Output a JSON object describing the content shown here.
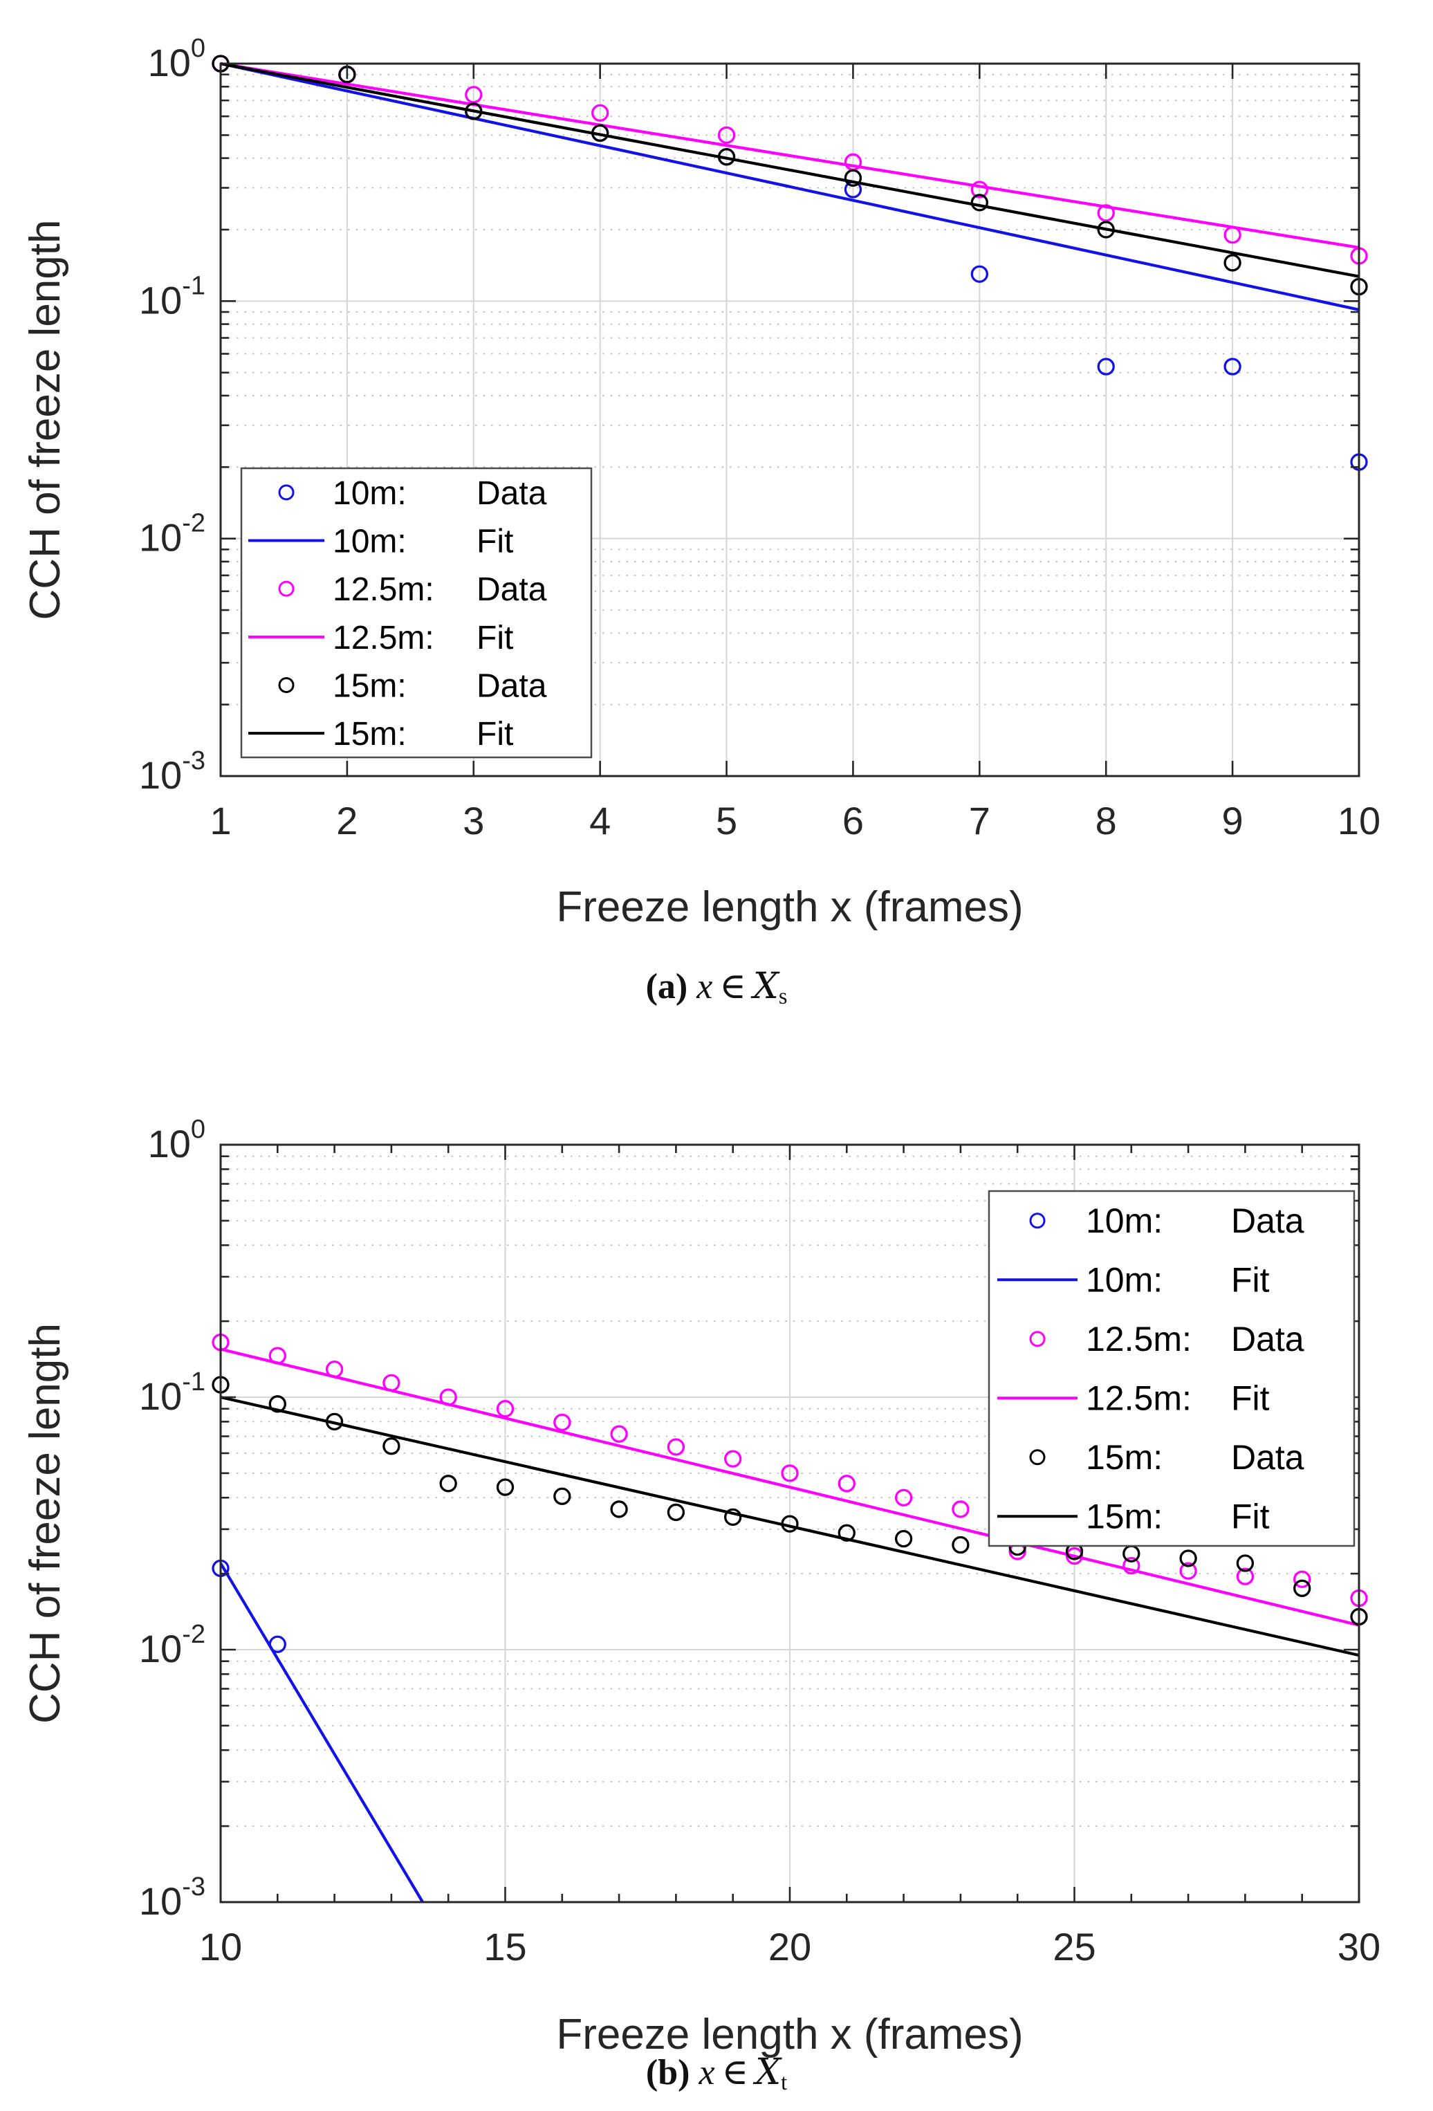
{
  "page": {
    "background": "#ffffff"
  },
  "captions": {
    "a": {
      "tag": "(a)",
      "x": "x",
      "element_of": "∈",
      "set": "X",
      "subscript": "s"
    },
    "b": {
      "tag": "(b)",
      "x": "x",
      "element_of": "∈",
      "set": "X",
      "subscript": "t"
    }
  },
  "chart_data": [
    {
      "id": "a",
      "type": "scatter",
      "title": "",
      "xlabel": "Freeze length x (frames)",
      "ylabel": "CCH of freeze length",
      "xlim": [
        1,
        10
      ],
      "xticks": [
        1,
        2,
        3,
        4,
        5,
        6,
        7,
        8,
        9,
        10
      ],
      "xminorticks": [],
      "ylog_exponents": [
        0,
        -3
      ],
      "grid": {
        "major": "solid",
        "minor": "dotted"
      },
      "colors": {
        "axis": "#262626",
        "grid_major": "#d6d6d6",
        "grid_minor": "#bdbdbd",
        "legend_border": "#4d4d4d"
      },
      "legend_position": "bottom-left",
      "legend_entries": [
        {
          "label": "10m:",
          "kind": "Data",
          "marker": "circle",
          "color": "#1212e8"
        },
        {
          "label": "10m:",
          "kind": "Fit",
          "marker": "line",
          "color": "#1212e8"
        },
        {
          "label": "12.5m:",
          "kind": "Data",
          "marker": "circle",
          "color": "#ff00ff"
        },
        {
          "label": "12.5m:",
          "kind": "Fit",
          "marker": "line",
          "color": "#ff00ff"
        },
        {
          "label": "15m:",
          "kind": "Data",
          "marker": "circle",
          "color": "#000000"
        },
        {
          "label": "15m:",
          "kind": "Fit",
          "marker": "line",
          "color": "#000000"
        }
      ],
      "series": [
        {
          "name": "10m Data",
          "color": "#1212e8",
          "marker": "circle",
          "x": [
            1,
            2,
            3,
            4,
            5,
            6,
            7,
            8,
            9,
            10
          ],
          "y": [
            1.0,
            0.9,
            0.63,
            0.51,
            0.405,
            0.295,
            0.13,
            0.053,
            0.053,
            0.021
          ]
        },
        {
          "name": "10m Fit",
          "color": "#1212e8",
          "line": true,
          "x": [
            1,
            10
          ],
          "y": [
            1.0,
            0.092
          ]
        },
        {
          "name": "12.5m Data",
          "color": "#ff00ff",
          "marker": "circle",
          "x": [
            1,
            2,
            3,
            4,
            5,
            6,
            7,
            8,
            9,
            10
          ],
          "y": [
            1.0,
            0.9,
            0.74,
            0.62,
            0.5,
            0.385,
            0.295,
            0.235,
            0.19,
            0.155
          ]
        },
        {
          "name": "12.5m Fit",
          "color": "#ff00ff",
          "line": true,
          "x": [
            1,
            10
          ],
          "y": [
            1.0,
            0.168
          ]
        },
        {
          "name": "15m Data",
          "color": "#000000",
          "marker": "circle",
          "x": [
            1,
            2,
            3,
            4,
            5,
            6,
            7,
            8,
            9,
            10
          ],
          "y": [
            1.0,
            0.9,
            0.63,
            0.51,
            0.405,
            0.33,
            0.26,
            0.2,
            0.145,
            0.115
          ]
        },
        {
          "name": "15m Fit",
          "color": "#000000",
          "line": true,
          "x": [
            1,
            10
          ],
          "y": [
            1.0,
            0.127
          ]
        }
      ]
    },
    {
      "id": "b",
      "type": "scatter",
      "title": "",
      "xlabel": "Freeze length x (frames)",
      "ylabel": "CCH of freeze length",
      "xlim": [
        10,
        30
      ],
      "xticks": [
        10,
        15,
        20,
        25,
        30
      ],
      "xminorticks": [
        11,
        12,
        13,
        14,
        16,
        17,
        18,
        19,
        21,
        22,
        23,
        24,
        26,
        27,
        28,
        29
      ],
      "ylog_exponents": [
        0,
        -3
      ],
      "grid": {
        "major": "solid",
        "minor": "dotted"
      },
      "colors": {
        "axis": "#262626",
        "grid_major": "#d6d6d6",
        "grid_minor": "#bdbdbd",
        "legend_border": "#4d4d4d"
      },
      "legend_position": "top-right",
      "legend_entries": [
        {
          "label": "10m:",
          "kind": "Data",
          "marker": "circle",
          "color": "#1212e8"
        },
        {
          "label": "10m:",
          "kind": "Fit",
          "marker": "line",
          "color": "#1212e8"
        },
        {
          "label": "12.5m:",
          "kind": "Data",
          "marker": "circle",
          "color": "#ff00ff"
        },
        {
          "label": "12.5m:",
          "kind": "Fit",
          "marker": "line",
          "color": "#ff00ff"
        },
        {
          "label": "15m:",
          "kind": "Data",
          "marker": "circle",
          "color": "#000000"
        },
        {
          "label": "15m:",
          "kind": "Fit",
          "marker": "line",
          "color": "#000000"
        }
      ],
      "series": [
        {
          "name": "10m Data",
          "color": "#1212e8",
          "marker": "circle",
          "x": [
            10,
            11
          ],
          "y": [
            0.021,
            0.0105
          ]
        },
        {
          "name": "10m Fit",
          "color": "#1212e8",
          "line": true,
          "x": [
            10,
            13.55
          ],
          "y": [
            0.022,
            0.001
          ]
        },
        {
          "name": "12.5m Data",
          "color": "#ff00ff",
          "marker": "circle",
          "x": [
            10,
            11,
            12,
            13,
            14,
            15,
            16,
            17,
            18,
            19,
            20,
            21,
            22,
            23,
            24,
            25,
            26,
            27,
            28,
            29,
            30
          ],
          "y": [
            0.165,
            0.146,
            0.129,
            0.114,
            0.1,
            0.09,
            0.0795,
            0.0715,
            0.0635,
            0.057,
            0.05,
            0.0455,
            0.04,
            0.036,
            0.0245,
            0.0235,
            0.0215,
            0.0205,
            0.0195,
            0.019,
            0.016
          ]
        },
        {
          "name": "12.5m Fit",
          "color": "#ff00ff",
          "line": true,
          "x": [
            10,
            30
          ],
          "y": [
            0.155,
            0.0125
          ]
        },
        {
          "name": "15m Data",
          "color": "#000000",
          "marker": "circle",
          "x": [
            10,
            11,
            12,
            13,
            14,
            15,
            16,
            17,
            18,
            19,
            20,
            21,
            22,
            23,
            24,
            25,
            26,
            27,
            28,
            29,
            30
          ],
          "y": [
            0.112,
            0.094,
            0.08,
            0.064,
            0.0455,
            0.044,
            0.0405,
            0.036,
            0.035,
            0.0335,
            0.0315,
            0.029,
            0.0275,
            0.026,
            0.0255,
            0.0245,
            0.024,
            0.023,
            0.022,
            0.0175,
            0.0135
          ]
        },
        {
          "name": "15m Fit",
          "color": "#000000",
          "line": true,
          "x": [
            10,
            30
          ],
          "y": [
            0.1,
            0.0095
          ]
        }
      ]
    }
  ]
}
